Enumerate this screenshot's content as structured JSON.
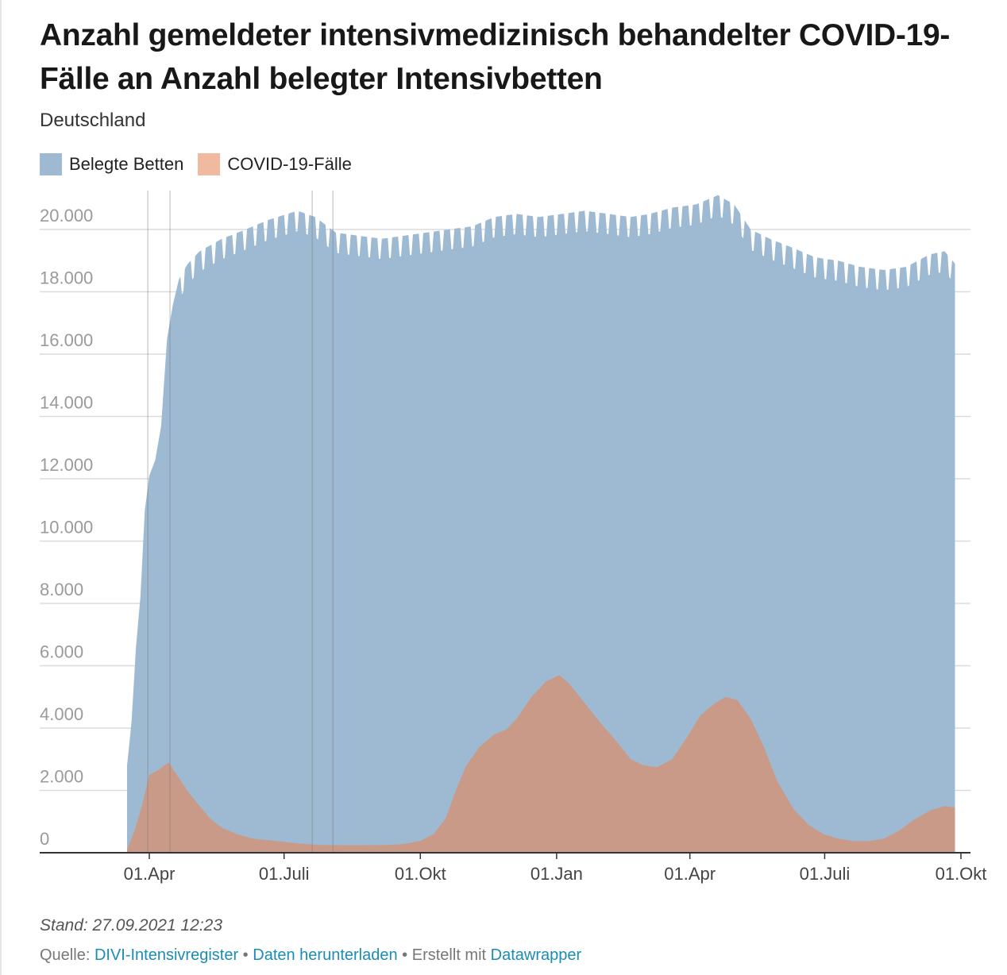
{
  "title": "Anzahl gemeldeter intensivmedizinisch behandelter COVID-19-Fälle an Anzahl belegter Intensivbetten",
  "subtitle": "Deutschland",
  "colors": {
    "beds": "#9ebad3",
    "covid": "#c99a87",
    "covid_swatch": "#f0b9a0"
  },
  "chart_data": {
    "type": "area",
    "title": "Anzahl gemeldeter intensivmedizinisch behandelter COVID-19-Fälle an Anzahl belegter Intensivbetten",
    "subtitle": "Deutschland",
    "xlabel": "",
    "ylabel": "",
    "ylim": [
      0,
      21000
    ],
    "x_range": [
      "2020-03-17",
      "2021-09-27"
    ],
    "x_ticks": [
      {
        "date": "2020-04-01",
        "label": "01.Apr"
      },
      {
        "date": "2020-07-01",
        "label": "01.Juli"
      },
      {
        "date": "2020-10-01",
        "label": "01.Okt"
      },
      {
        "date": "2021-01-01",
        "label": "01.Jan"
      },
      {
        "date": "2021-04-01",
        "label": "01.Apr"
      },
      {
        "date": "2021-07-01",
        "label": "01.Juli"
      },
      {
        "date": "2021-10-01",
        "label": "01.Okt"
      }
    ],
    "y_ticks": [
      {
        "value": 0,
        "label": "0"
      },
      {
        "value": 2000,
        "label": "2.000"
      },
      {
        "value": 4000,
        "label": "4.000"
      },
      {
        "value": 6000,
        "label": "6.000"
      },
      {
        "value": 8000,
        "label": "8.000"
      },
      {
        "value": 10000,
        "label": "10.000"
      },
      {
        "value": 12000,
        "label": "12.000"
      },
      {
        "value": 14000,
        "label": "14.000"
      },
      {
        "value": 16000,
        "label": "16.000"
      },
      {
        "value": 18000,
        "label": "18.000"
      },
      {
        "value": 20000,
        "label": "20.000"
      }
    ],
    "grid": true,
    "legend": "top-left",
    "event_lines": [
      "2020-03-31",
      "2020-04-15",
      "2020-07-20",
      "2020-08-03"
    ],
    "series": [
      {
        "name": "Belegte Betten",
        "color": "#9ebad3",
        "points": [
          [
            "2020-03-17",
            2800
          ],
          [
            "2020-03-20",
            4200
          ],
          [
            "2020-03-23",
            6600
          ],
          [
            "2020-03-26",
            8200
          ],
          [
            "2020-03-29",
            11000
          ],
          [
            "2020-04-01",
            12100
          ],
          [
            "2020-04-05",
            12600
          ],
          [
            "2020-04-09",
            13700
          ],
          [
            "2020-04-13",
            16500
          ],
          [
            "2020-04-17",
            17600
          ],
          [
            "2020-04-21",
            18400
          ],
          [
            "2020-04-27",
            18900
          ],
          [
            "2020-05-05",
            19300
          ],
          [
            "2020-05-20",
            19700
          ],
          [
            "2020-06-05",
            20000
          ],
          [
            "2020-06-20",
            20300
          ],
          [
            "2020-07-10",
            20600
          ],
          [
            "2020-07-22",
            20400
          ],
          [
            "2020-08-05",
            19900
          ],
          [
            "2020-08-20",
            19800
          ],
          [
            "2020-09-05",
            19700
          ],
          [
            "2020-09-20",
            19800
          ],
          [
            "2020-10-05",
            19900
          ],
          [
            "2020-10-20",
            20000
          ],
          [
            "2020-11-05",
            20100
          ],
          [
            "2020-11-20",
            20400
          ],
          [
            "2020-12-05",
            20500
          ],
          [
            "2020-12-20",
            20400
          ],
          [
            "2021-01-05",
            20500
          ],
          [
            "2021-01-20",
            20600
          ],
          [
            "2021-02-05",
            20500
          ],
          [
            "2021-02-20",
            20400
          ],
          [
            "2021-03-05",
            20500
          ],
          [
            "2021-03-20",
            20700
          ],
          [
            "2021-04-05",
            20800
          ],
          [
            "2021-04-20",
            21100
          ],
          [
            "2021-05-01",
            20800
          ],
          [
            "2021-05-12",
            20000
          ],
          [
            "2021-05-25",
            19700
          ],
          [
            "2021-06-10",
            19400
          ],
          [
            "2021-06-25",
            19100
          ],
          [
            "2021-07-10",
            19000
          ],
          [
            "2021-07-25",
            18800
          ],
          [
            "2021-08-10",
            18700
          ],
          [
            "2021-08-25",
            18800
          ],
          [
            "2021-09-10",
            19200
          ],
          [
            "2021-09-20",
            19300
          ],
          [
            "2021-09-27",
            18900
          ]
        ]
      },
      {
        "name": "COVID-19-Fälle",
        "color": "#c99a87",
        "points": [
          [
            "2020-03-17",
            100
          ],
          [
            "2020-03-22",
            700
          ],
          [
            "2020-03-27",
            1500
          ],
          [
            "2020-04-01",
            2500
          ],
          [
            "2020-04-07",
            2650
          ],
          [
            "2020-04-14",
            2900
          ],
          [
            "2020-04-21",
            2400
          ],
          [
            "2020-04-28",
            1900
          ],
          [
            "2020-05-05",
            1500
          ],
          [
            "2020-05-12",
            1100
          ],
          [
            "2020-05-20",
            800
          ],
          [
            "2020-05-30",
            600
          ],
          [
            "2020-06-10",
            450
          ],
          [
            "2020-06-25",
            380
          ],
          [
            "2020-07-10",
            300
          ],
          [
            "2020-07-25",
            250
          ],
          [
            "2020-08-10",
            240
          ],
          [
            "2020-08-25",
            240
          ],
          [
            "2020-09-10",
            250
          ],
          [
            "2020-09-20",
            280
          ],
          [
            "2020-10-01",
            380
          ],
          [
            "2020-10-10",
            600
          ],
          [
            "2020-10-18",
            1100
          ],
          [
            "2020-10-25",
            2000
          ],
          [
            "2020-11-01",
            2800
          ],
          [
            "2020-11-10",
            3400
          ],
          [
            "2020-11-20",
            3800
          ],
          [
            "2020-11-28",
            3950
          ],
          [
            "2020-12-05",
            4300
          ],
          [
            "2020-12-15",
            5000
          ],
          [
            "2020-12-25",
            5500
          ],
          [
            "2021-01-03",
            5700
          ],
          [
            "2021-01-10",
            5400
          ],
          [
            "2021-01-20",
            4800
          ],
          [
            "2021-01-30",
            4200
          ],
          [
            "2021-02-10",
            3600
          ],
          [
            "2021-02-20",
            3000
          ],
          [
            "2021-03-01",
            2800
          ],
          [
            "2021-03-10",
            2750
          ],
          [
            "2021-03-20",
            3000
          ],
          [
            "2021-03-30",
            3700
          ],
          [
            "2021-04-08",
            4400
          ],
          [
            "2021-04-18",
            4800
          ],
          [
            "2021-04-25",
            5000
          ],
          [
            "2021-05-03",
            4900
          ],
          [
            "2021-05-12",
            4300
          ],
          [
            "2021-05-20",
            3500
          ],
          [
            "2021-05-30",
            2300
          ],
          [
            "2021-06-10",
            1400
          ],
          [
            "2021-06-20",
            900
          ],
          [
            "2021-06-30",
            600
          ],
          [
            "2021-07-10",
            450
          ],
          [
            "2021-07-20",
            380
          ],
          [
            "2021-07-30",
            370
          ],
          [
            "2021-08-10",
            450
          ],
          [
            "2021-08-20",
            700
          ],
          [
            "2021-08-30",
            1050
          ],
          [
            "2021-09-10",
            1350
          ],
          [
            "2021-09-20",
            1500
          ],
          [
            "2021-09-27",
            1450
          ]
        ]
      }
    ]
  },
  "footer": {
    "stand": "Stand: 27.09.2021 12:23",
    "quelle_label": "Quelle:",
    "source_link": "DIVI-Intensivregister",
    "sep1": "•",
    "download_link": "Daten herunterladen",
    "sep2": "•",
    "created_label": "Erstellt mit",
    "datawrapper_link": "Datawrapper"
  }
}
